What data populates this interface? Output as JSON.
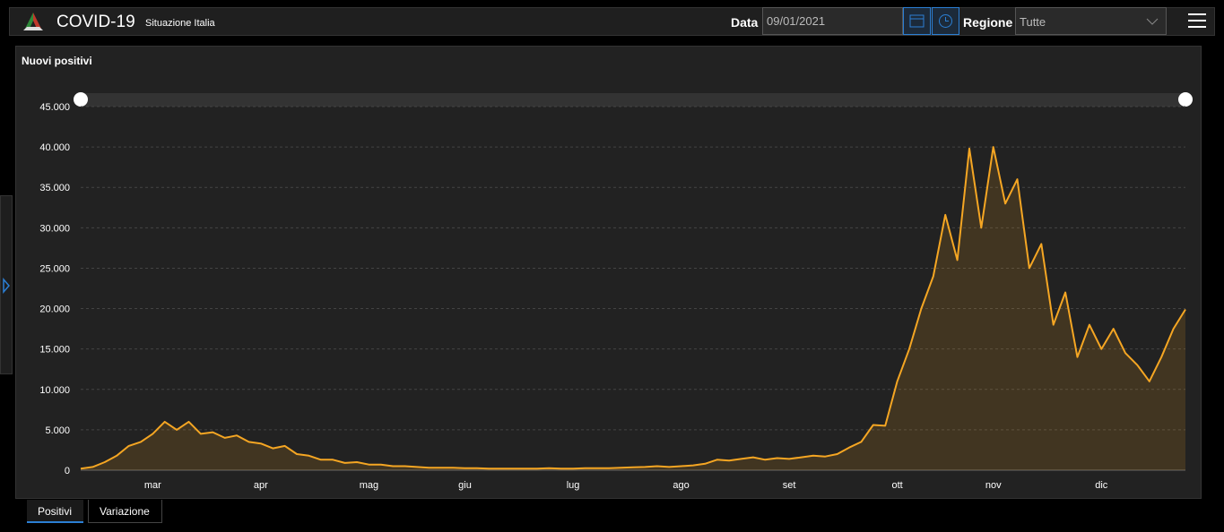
{
  "header": {
    "title": "COVID-19",
    "subtitle": "Situazione Italia",
    "date_label": "Data",
    "date_value": "09/01/2021",
    "region_label": "Regione",
    "region_value": "Tutte"
  },
  "tabs": [
    "Positivi",
    "Variazione"
  ],
  "chart_data": {
    "type": "area",
    "title": "Nuovi positivi",
    "color": "#f5a623",
    "categories": [
      null,
      null,
      null,
      null,
      null,
      null,
      "mar",
      null,
      null,
      null,
      null,
      null,
      null,
      null,
      null,
      "apr",
      null,
      null,
      null,
      null,
      null,
      null,
      null,
      null,
      "mag",
      null,
      null,
      null,
      null,
      null,
      null,
      null,
      "giu",
      null,
      null,
      null,
      null,
      null,
      null,
      null,
      null,
      "lug",
      null,
      null,
      null,
      null,
      null,
      null,
      null,
      null,
      "ago",
      null,
      null,
      null,
      null,
      null,
      null,
      null,
      null,
      "set",
      null,
      null,
      null,
      null,
      null,
      null,
      null,
      null,
      "ott",
      null,
      null,
      null,
      null,
      null,
      null,
      null,
      "nov",
      null,
      null,
      null,
      null,
      null,
      null,
      null,
      null,
      "dic",
      null,
      null,
      null,
      null,
      null,
      null,
      null
    ],
    "values": [
      200,
      400,
      1000,
      1800,
      3000,
      3500,
      4500,
      6000,
      5000,
      6000,
      4500,
      4700,
      4000,
      4300,
      3500,
      3300,
      2700,
      3000,
      2000,
      1800,
      1300,
      1300,
      900,
      1000,
      700,
      700,
      500,
      500,
      400,
      300,
      300,
      300,
      250,
      250,
      200,
      200,
      200,
      200,
      200,
      250,
      200,
      200,
      250,
      250,
      250,
      300,
      350,
      400,
      500,
      400,
      500,
      600,
      800,
      1300,
      1200,
      1400,
      1600,
      1300,
      1500,
      1400,
      1600,
      1800,
      1700,
      2000,
      2800,
      3500,
      5600,
      5500,
      11000,
      15000,
      20000,
      24000,
      31600,
      26000,
      39800,
      30000,
      40000,
      33000,
      36000,
      25000,
      28000,
      18000,
      22000,
      14000,
      18000,
      15000,
      17500,
      14500,
      13000,
      11000,
      14000,
      17500,
      19900
    ],
    "ylim": [
      0,
      45000
    ],
    "yticks": [
      0,
      {
        "value": 5000,
        "label": "5.000"
      },
      {
        "value": 10000,
        "label": "10.000"
      },
      {
        "value": 15000,
        "label": "15.000"
      },
      {
        "value": 20000,
        "label": "20.000"
      },
      {
        "value": 25000,
        "label": "25.000"
      },
      {
        "value": 30000,
        "label": "30.000"
      },
      {
        "value": 35000,
        "label": "35.000"
      },
      {
        "value": 40000,
        "label": "40.000"
      },
      {
        "value": 45000,
        "label": "45.000"
      }
    ],
    "grid": true
  }
}
